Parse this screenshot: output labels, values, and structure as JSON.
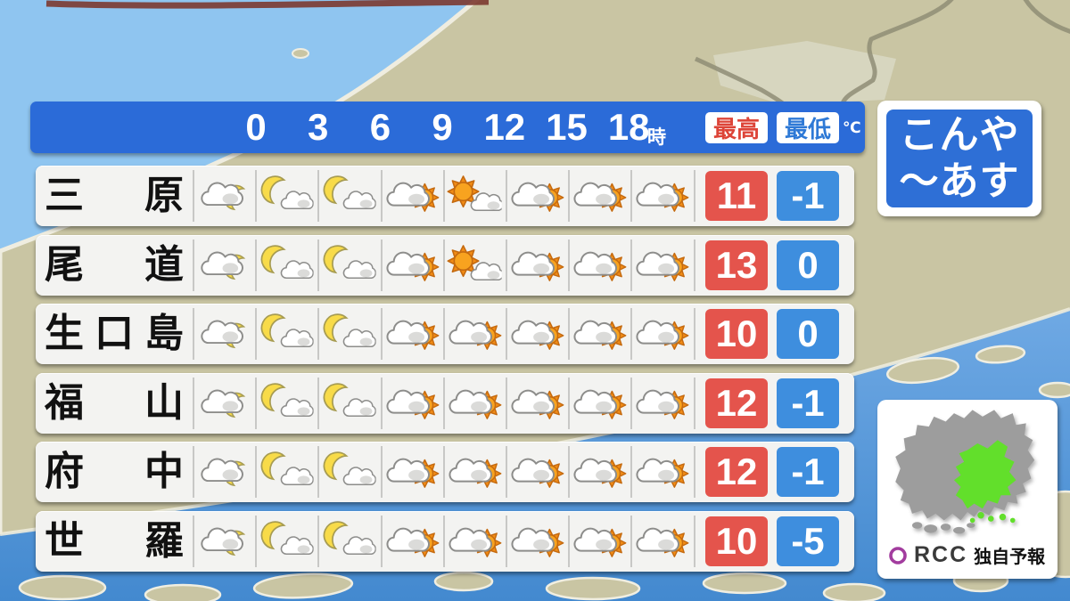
{
  "header": {
    "times": [
      "0",
      "3",
      "6",
      "9",
      "12",
      "15",
      "18"
    ],
    "hour_unit": "時",
    "high_label": "最高",
    "low_label": "最低",
    "temp_unit": "℃"
  },
  "period_panel": {
    "line1": "こんや",
    "line2": "～あす"
  },
  "footer": {
    "logo": "RCC",
    "tagline": "独自予報"
  },
  "icon_legend": {
    "cloud-moon": "cloud in front of crescent moon",
    "moon-cloud": "crescent moon with small cloud",
    "cloud-sun": "cloud in front of sun",
    "sun-cloud": "sun with small cloud"
  },
  "colors": {
    "header_blue": "#2B6BD8",
    "panel_blue": "#2E6FD6",
    "max_red": "#E4544C",
    "min_blue": "#3E8EDE",
    "high_label_red": "#DD4438",
    "low_label_blue": "#2E79D6",
    "highlight_green": "#62DF2B",
    "map_gray": "#9D9D9D",
    "logo_purple": "#A23C9E",
    "land_khaki": "#C9C5A3",
    "sea_deep": "#4389CF",
    "sea_light": "#8FC5F0"
  },
  "chart_data": {
    "type": "table",
    "title": "こんや～あす",
    "time_boundaries_hours": [
      "0",
      "3",
      "6",
      "9",
      "12",
      "15",
      "18"
    ],
    "columns": [
      "city",
      "icon-1",
      "icon-2",
      "icon-3",
      "icon-4",
      "icon-5",
      "icon-6",
      "icon-7",
      "icon-8",
      "max_temp_c",
      "min_temp_c"
    ],
    "rows": [
      {
        "city": "三原",
        "icons": [
          "cloud-moon",
          "moon-cloud",
          "moon-cloud",
          "cloud-sun",
          "sun-cloud",
          "cloud-sun",
          "cloud-sun",
          "cloud-sun"
        ],
        "max": 11,
        "min": -1
      },
      {
        "city": "尾道",
        "icons": [
          "cloud-moon",
          "moon-cloud",
          "moon-cloud",
          "cloud-sun",
          "sun-cloud",
          "cloud-sun",
          "cloud-sun",
          "cloud-sun"
        ],
        "max": 13,
        "min": 0
      },
      {
        "city": "生口島",
        "icons": [
          "cloud-moon",
          "moon-cloud",
          "moon-cloud",
          "cloud-sun",
          "cloud-sun",
          "cloud-sun",
          "cloud-sun",
          "cloud-sun"
        ],
        "max": 10,
        "min": 0
      },
      {
        "city": "福山",
        "icons": [
          "cloud-moon",
          "moon-cloud",
          "moon-cloud",
          "cloud-sun",
          "cloud-sun",
          "cloud-sun",
          "cloud-sun",
          "cloud-sun"
        ],
        "max": 12,
        "min": -1
      },
      {
        "city": "府中",
        "icons": [
          "cloud-moon",
          "moon-cloud",
          "moon-cloud",
          "cloud-sun",
          "cloud-sun",
          "cloud-sun",
          "cloud-sun",
          "cloud-sun"
        ],
        "max": 12,
        "min": -1
      },
      {
        "city": "世羅",
        "icons": [
          "cloud-moon",
          "moon-cloud",
          "moon-cloud",
          "cloud-sun",
          "cloud-sun",
          "cloud-sun",
          "cloud-sun",
          "cloud-sun"
        ],
        "max": 10,
        "min": -5
      }
    ]
  }
}
